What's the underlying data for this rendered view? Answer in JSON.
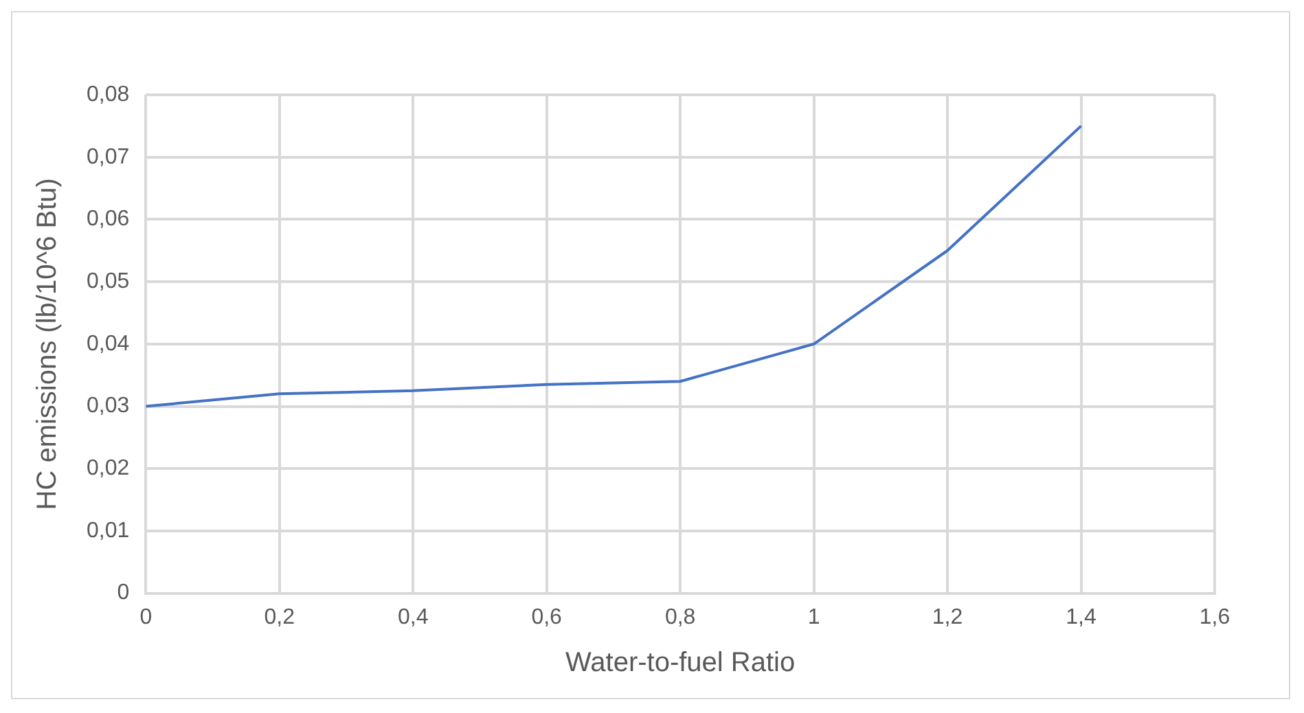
{
  "chart_data": {
    "type": "line",
    "xlabel": "Water-to-fuel Ratio",
    "ylabel": "HC emissions (lb/10^6 Btu)",
    "x": [
      0,
      0.2,
      0.4,
      0.6,
      0.8,
      1,
      1.2,
      1.4
    ],
    "series": [
      {
        "color": "#4472c4",
        "values": [
          0.03,
          0.032,
          0.0325,
          0.0335,
          0.034,
          0.04,
          0.055,
          0.075
        ]
      }
    ],
    "xlim": [
      0,
      1.6
    ],
    "xticks": [
      0,
      {
        "value": 0.2,
        "label": "0,2"
      },
      {
        "value": 0.4,
        "label": "0,4"
      },
      {
        "value": 0.6,
        "label": "0,6"
      },
      {
        "value": 0.8,
        "label": "0,8"
      },
      1,
      {
        "value": 1.2,
        "label": "1,2"
      },
      {
        "value": 1.4,
        "label": "1,4"
      },
      {
        "value": 1.6,
        "label": "1,6"
      }
    ],
    "ylim": [
      0,
      0.08
    ],
    "yticks": [
      0,
      {
        "value": 0.01,
        "label": "0,01"
      },
      {
        "value": 0.02,
        "label": "0,02"
      },
      {
        "value": 0.03,
        "label": "0,03"
      },
      {
        "value": 0.04,
        "label": "0,04"
      },
      {
        "value": 0.05,
        "label": "0,05"
      },
      {
        "value": 0.06,
        "label": "0,06"
      },
      {
        "value": 0.07,
        "label": "0,07"
      },
      {
        "value": 0.08,
        "label": "0,08"
      }
    ],
    "grid": true,
    "legend": false,
    "marker": "none",
    "line_style": "solid"
  }
}
